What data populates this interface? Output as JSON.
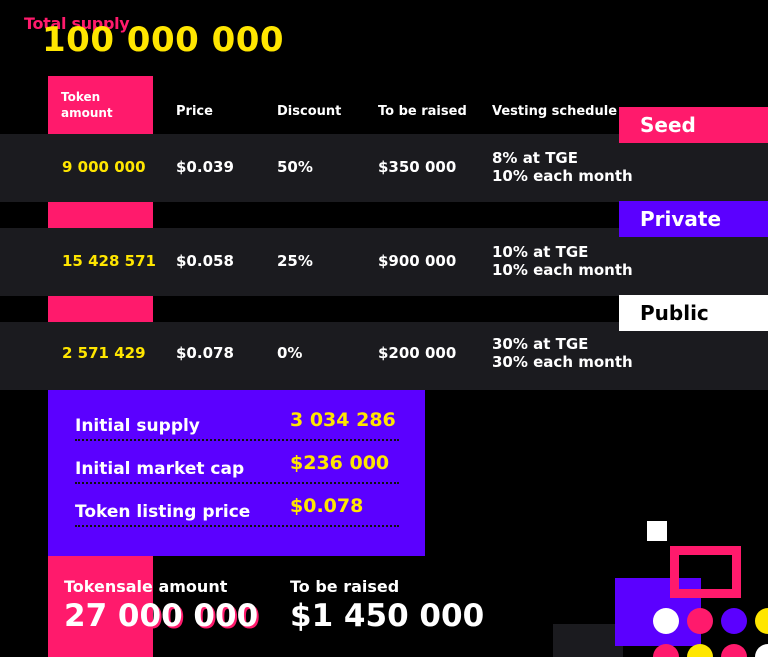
{
  "total_supply": {
    "label": "Total supply",
    "value": "100 000 000"
  },
  "headers": {
    "token_amount": "Token amount",
    "price": "Price",
    "discount": "Discount",
    "to_be_raised": "To be raised",
    "vesting": "Vesting schedule"
  },
  "rounds": [
    {
      "tag": "Seed",
      "amount": "9 000 000",
      "price": "$0.039",
      "discount": "50%",
      "raised": "$350 000",
      "vesting1": "8% at TGE",
      "vesting2": "10% each month"
    },
    {
      "tag": "Private",
      "amount": "15 428 571",
      "price": "$0.058",
      "discount": "25%",
      "raised": "$900 000",
      "vesting1": "10% at TGE",
      "vesting2": "10% each month"
    },
    {
      "tag": "Public",
      "amount": "2 571 429",
      "price": "$0.078",
      "discount": "0%",
      "raised": "$200 000",
      "vesting1": "30% at TGE",
      "vesting2": "30% each month"
    }
  ],
  "summary": {
    "initial_supply_label": "Initial supply",
    "initial_supply_value": "3 034 286",
    "market_cap_label": "Initial market cap",
    "market_cap_value": "$236 000",
    "listing_price_label": "Token listing price",
    "listing_price_value": "$0.078"
  },
  "tokensale": {
    "label": "Tokensale amount",
    "value": "27 000 000"
  },
  "raised_total": {
    "label": "To be raised",
    "value": "$1 450 000"
  },
  "colors": {
    "pink": "#ff1a6c",
    "yellow": "#ffe600",
    "purple": "#5b00ff",
    "band": "#1b1b1f"
  }
}
